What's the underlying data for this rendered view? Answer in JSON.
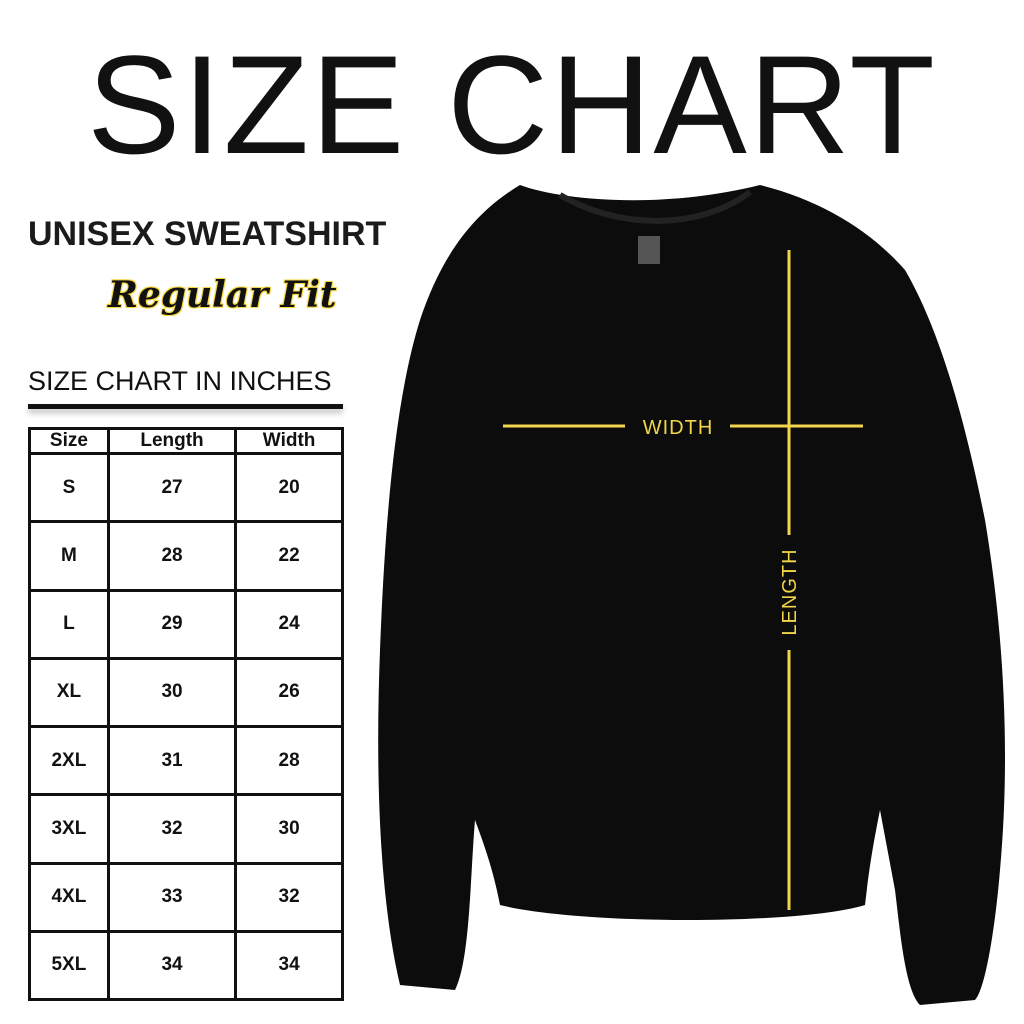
{
  "title": "SIZE CHART",
  "product": "UNISEX SWEATSHIRT",
  "fit": "Regular Fit",
  "table_title": "SIZE CHART IN INCHES",
  "table": {
    "headers": [
      "Size",
      "Length",
      "Width"
    ],
    "rows": [
      [
        "S",
        "27",
        "20"
      ],
      [
        "M",
        "28",
        "22"
      ],
      [
        "L",
        "29",
        "24"
      ],
      [
        "XL",
        "30",
        "26"
      ],
      [
        "2XL",
        "31",
        "28"
      ],
      [
        "3XL",
        "32",
        "30"
      ],
      [
        "4XL",
        "33",
        "32"
      ],
      [
        "5XL",
        "34",
        "34"
      ]
    ]
  },
  "measure_labels": {
    "width": "WIDTH",
    "length": "LENGTH"
  },
  "colors": {
    "garment": "#0c0c0c",
    "measure_line": "#f2d54a",
    "text": "#111111"
  }
}
